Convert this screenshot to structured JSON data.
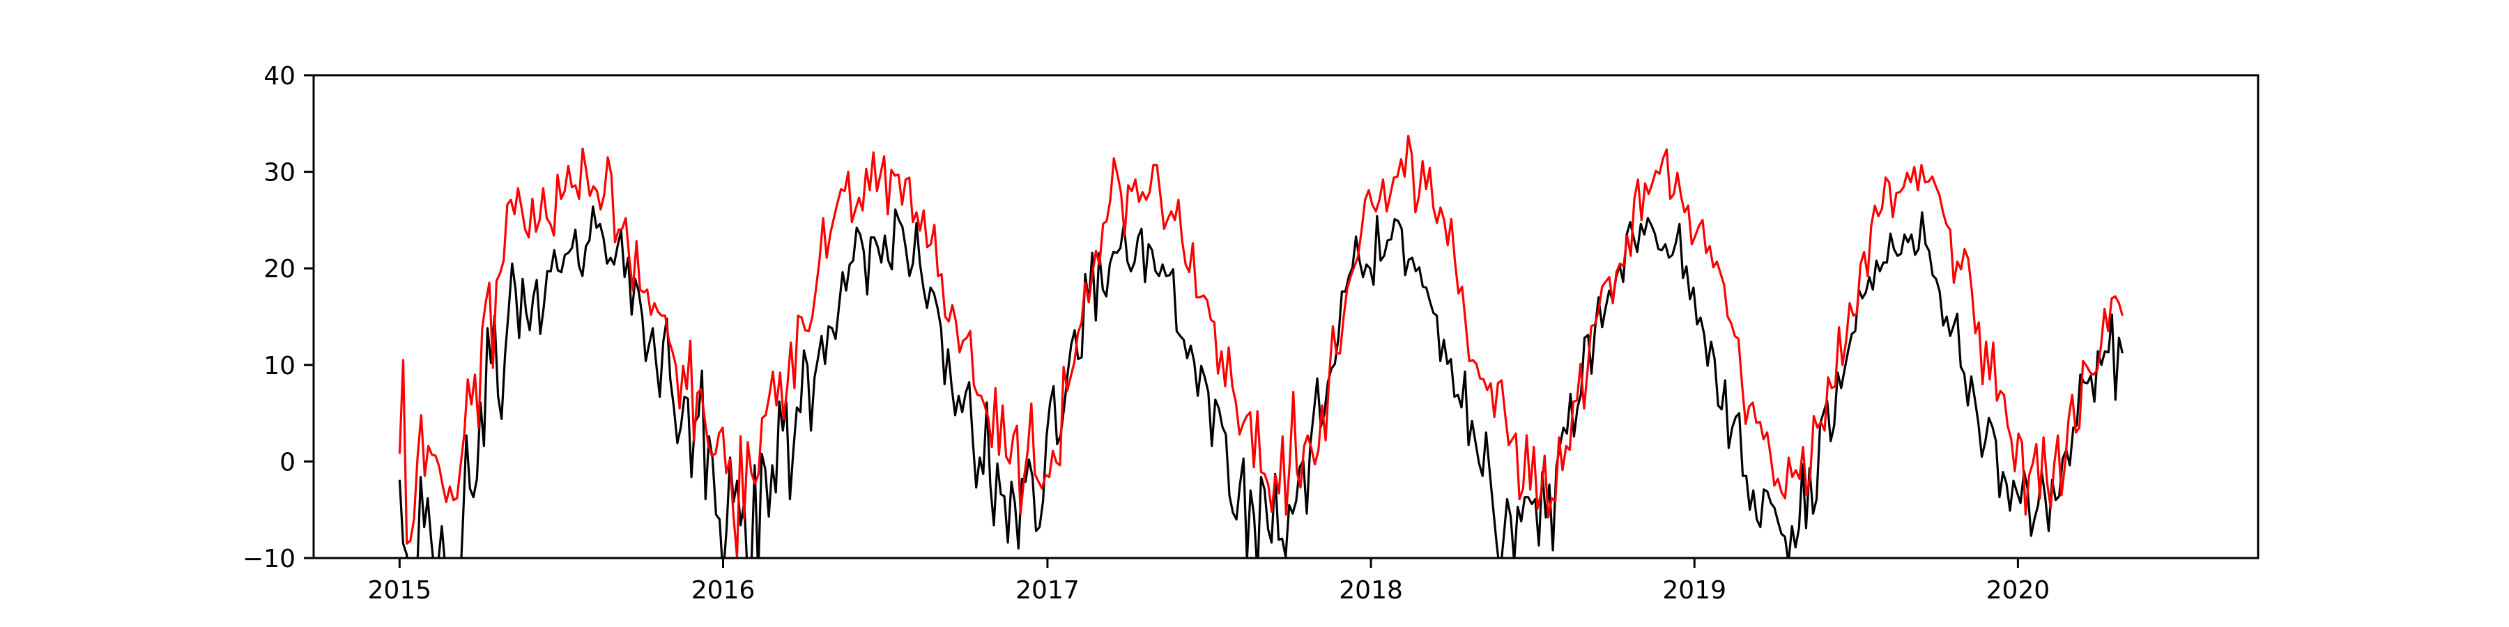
{
  "chart_data": {
    "type": "line",
    "title": "",
    "xlabel": "",
    "ylabel": "",
    "xlim": [
      "2014-09-26",
      "2020-09-28"
    ],
    "ylim": [
      -10,
      40
    ],
    "grid": false,
    "legend": "none",
    "x_ticks": [
      "2015",
      "2016",
      "2017",
      "2018",
      "2019",
      "2020"
    ],
    "y_ticks": [
      "−10",
      "0",
      "10",
      "20",
      "30",
      "40"
    ],
    "x_tick_dates": [
      "2015-01-01",
      "2016-01-01",
      "2017-01-01",
      "2018-01-01",
      "2019-01-01",
      "2020-01-01"
    ],
    "y_tick_values": [
      -10,
      0,
      10,
      20,
      30,
      40
    ],
    "x_start": "2015-01-01",
    "x_end": "2020-04-28",
    "colors": {
      "series_low": "#000000",
      "series_high": "#ff0000"
    },
    "series": [
      {
        "color": "#000000",
        "values": [
          -1.9,
          -8.5,
          -9.6,
          -12.5,
          -10.1,
          -11.4,
          -1.6,
          -6.8,
          -3.8,
          -8.2,
          -11.8,
          -10.5,
          -6.7,
          -11.0,
          -10.3,
          -11.9,
          -10.5,
          -14.6,
          -6.3,
          2.7,
          -2.8,
          -3.7,
          -1.8,
          6.1,
          1.6,
          13.8,
          10.2,
          15.1,
          6.8,
          4.4,
          11.1,
          15.5,
          20.5,
          17.8,
          12.8,
          18.9,
          15.4,
          13.6,
          17.0,
          18.8,
          13.2,
          16.0,
          19.7,
          19.7,
          21.9,
          19.8,
          19.6,
          21.4,
          21.6,
          22.1,
          24.0,
          20.3,
          19.2,
          22.3,
          22.9,
          26.4,
          24.2,
          24.6,
          23.1,
          20.5,
          21.1,
          20.4,
          22.3,
          23.9,
          19.1,
          21.1,
          15.2,
          18.9,
          17.6,
          15.1,
          10.4,
          12.2,
          13.8,
          10.1,
          6.7,
          12.4,
          14.8,
          8.5,
          5.6,
          1.9,
          3.6,
          6.7,
          6.5,
          -1.6,
          4.1,
          4.7,
          9.4,
          -3.9,
          2.6,
          0.3,
          -5.5,
          -6.0,
          -11.9,
          -7.0,
          0.4,
          -4.2,
          -2.0,
          -6.6,
          -4.2,
          -12.1,
          -11.3,
          -0.4,
          -11.8,
          0.8,
          -0.8,
          -5.7,
          -0.4,
          -3.2,
          6.2,
          3.2,
          6.1,
          -3.9,
          1.2,
          5.6,
          5.1,
          11.5,
          9.9,
          3.2,
          8.7,
          10.7,
          13.0,
          10.1,
          14.0,
          13.8,
          12.7,
          16.2,
          19.6,
          17.7,
          20.4,
          20.8,
          24.2,
          23.5,
          21.8,
          17.3,
          23.2,
          23.2,
          22.2,
          20.6,
          23.4,
          20.8,
          19.9,
          26.1,
          25.0,
          24.3,
          22.0,
          19.2,
          20.5,
          24.7,
          20.5,
          17.9,
          15.9,
          18.0,
          17.4,
          15.9,
          13.8,
          8.0,
          11.6,
          7.8,
          4.8,
          6.8,
          5.1,
          7.1,
          8.2,
          2.3,
          -2.7,
          0.4,
          -1.3,
          6.1,
          -2.4,
          -6.6,
          -0.2,
          -3.4,
          -3.6,
          -8.4,
          -2.1,
          -4.3,
          -9.0,
          -1.8,
          -2.1,
          0.2,
          -1.6,
          -7.2,
          -6.8,
          -4.1,
          2.6,
          6.1,
          7.8,
          1.8,
          2.7,
          5.6,
          9.1,
          12.1,
          13.6,
          10.6,
          10.8,
          19.4,
          16.5,
          21.6,
          14.6,
          21.6,
          17.8,
          17.1,
          20.5,
          21.7,
          21.6,
          22.1,
          24.6,
          20.7,
          19.7,
          20.6,
          23.2,
          24.1,
          18.6,
          22.5,
          21.9,
          19.7,
          19.2,
          20.4,
          19.2,
          19.3,
          19.9,
          13.5,
          13.0,
          12.6,
          10.7,
          12.0,
          10.3,
          6.8,
          9.9,
          8.7,
          7.2,
          1.6,
          6.4,
          5.5,
          3.6,
          2.8,
          -3.5,
          -5.3,
          -6.0,
          -2.4,
          0.3,
          -10.2,
          -3.0,
          -5.6,
          -11.6,
          -1.6,
          -2.9,
          -7.0,
          -8.4,
          -1.3,
          -8.1,
          -8.0,
          -9.9,
          -4.5,
          -5.4,
          -4.1,
          -0.6,
          0.1,
          -5.4,
          1.7,
          5.1,
          8.6,
          3.6,
          4.9,
          8.2,
          9.6,
          10.1,
          12.8,
          17.6,
          17.6,
          19.2,
          20.1,
          23.3,
          20.8,
          19.1,
          20.4,
          20.0,
          18.3,
          25.4,
          20.8,
          21.3,
          22.9,
          23.0,
          25.1,
          24.9,
          24.1,
          19.3,
          20.9,
          21.1,
          19.7,
          20.1,
          18.1,
          18.0,
          16.6,
          15.4,
          15.1,
          10.4,
          12.6,
          10.1,
          10.6,
          6.7,
          6.9,
          5.6,
          9.3,
          1.7,
          4.2,
          2.0,
          -0.2,
          -1.5,
          3.0,
          -0.9,
          -4.8,
          -8.5,
          -11.7,
          -7.9,
          -3.9,
          -5.7,
          -10.4,
          -4.7,
          -6.2,
          -3.7,
          -3.7,
          -4.4,
          -3.9,
          -8.7,
          -1.1,
          -5.8,
          -2.4,
          -9.2,
          -0.5,
          1.6,
          3.5,
          2.9,
          7.0,
          2.6,
          5.6,
          7.0,
          12.8,
          13.1,
          9.1,
          13.8,
          17.0,
          13.9,
          15.9,
          17.7,
          16.7,
          19.1,
          20.3,
          18.6,
          23.5,
          24.8,
          23.1,
          21.7,
          24.6,
          23.5,
          25.2,
          24.5,
          23.6,
          22.0,
          21.9,
          22.5,
          21.1,
          21.4,
          22.7,
          24.6,
          19.0,
          20.2,
          16.8,
          18.0,
          14.2,
          14.9,
          13.2,
          9.9,
          12.4,
          10.6,
          5.8,
          5.4,
          8.4,
          1.4,
          3.5,
          4.6,
          5.0,
          -1.5,
          -1.5,
          -5.0,
          -3.0,
          -6.0,
          -6.8,
          -2.9,
          -3.1,
          -4.3,
          -4.8,
          -6.2,
          -7.5,
          -7.8,
          -10.5,
          -6.7,
          -8.9,
          -6.9,
          -0.3,
          -6.9,
          -0.7,
          -5.4,
          -3.9,
          3.9,
          5.1,
          6.3,
          2.1,
          3.7,
          9.2,
          7.6,
          9.6,
          11.5,
          13.2,
          13.5,
          17.8,
          16.9,
          17.5,
          19.1,
          17.8,
          20.8,
          19.7,
          20.6,
          20.6,
          23.6,
          22.0,
          21.3,
          21.5,
          23.5,
          22.7,
          23.5,
          21.4,
          22.0,
          25.8,
          22.5,
          21.8,
          19.3,
          18.9,
          17.6,
          14.1,
          15.0,
          13.0,
          14.1,
          15.3,
          9.8,
          9.1,
          5.8,
          8.8,
          6.5,
          4.0,
          0.5,
          2.1,
          4.5,
          3.6,
          2.1,
          -3.7,
          -1.1,
          -2.3,
          -5.1,
          -2.0,
          -3.2,
          -4.3,
          -1.0,
          -2.8,
          -7.7,
          -5.9,
          -4.5,
          -1.0,
          -3.6,
          -7.2,
          -1.9,
          -4.0,
          -3.6,
          0.3,
          1.2,
          -0.4,
          3.5,
          3.7,
          9.0,
          8.2,
          8.1,
          8.9,
          6.2,
          11.4,
          10.0,
          11.4,
          11.3,
          15.2,
          6.4,
          12.8,
          11.2
        ],
        "style": "line"
      },
      {
        "color": "#ff0000",
        "values": [
          0.8,
          10.5,
          -8.5,
          -8.2,
          -6.0,
          0.4,
          4.8,
          -1.5,
          1.6,
          0.7,
          0.6,
          -0.5,
          -2.5,
          -4.2,
          -2.6,
          -4.0,
          -3.8,
          -0.4,
          2.8,
          8.5,
          5.9,
          9.0,
          3.5,
          13.7,
          16.5,
          18.5,
          9.7,
          18.7,
          19.5,
          20.8,
          26.6,
          27.1,
          25.6,
          28.3,
          26.2,
          24.0,
          23.2,
          27.2,
          23.8,
          25.0,
          28.3,
          25.2,
          24.6,
          23.4,
          29.7,
          27.2,
          28.0,
          30.6,
          28.4,
          28.6,
          27.2,
          32.4,
          30.1,
          27.5,
          28.5,
          28.0,
          26.1,
          27.6,
          31.5,
          29.7,
          22.7,
          24.0,
          24.1,
          25.2,
          21.0,
          17.7,
          22.8,
          17.8,
          17.5,
          17.8,
          15.2,
          16.4,
          15.5,
          15.1,
          15.1,
          12.6,
          11.4,
          9.9,
          5.5,
          9.9,
          7.5,
          12.5,
          2.1,
          7.1,
          7.5,
          4.4,
          1.7,
          0.6,
          0.8,
          2.9,
          3.5,
          -1.2,
          0.2,
          -5.5,
          -9.9,
          2.6,
          -5.9,
          2.0,
          -1.2,
          -2.3,
          -1.3,
          4.5,
          4.8,
          6.8,
          9.3,
          5.8,
          9.2,
          4.4,
          7.7,
          12.3,
          7.6,
          15.1,
          14.9,
          13.6,
          13.5,
          15.0,
          17.9,
          20.9,
          25.2,
          21.1,
          23.6,
          25.2,
          26.8,
          28.2,
          28.0,
          30.0,
          24.8,
          26.1,
          27.3,
          26.0,
          30.3,
          28.1,
          32.0,
          28.0,
          29.8,
          31.6,
          25.6,
          30.2,
          29.6,
          29.7,
          26.6,
          29.2,
          29.4,
          24.8,
          25.8,
          23.9,
          26.0,
          22.2,
          22.5,
          24.5,
          19.2,
          19.4,
          15.0,
          14.5,
          16.2,
          14.5,
          11.3,
          12.5,
          12.8,
          13.5,
          7.9,
          6.9,
          6.8,
          5.8,
          4.5,
          1.5,
          7.6,
          0.7,
          5.8,
          0.5,
          -0.2,
          2.7,
          3.7,
          -5.4,
          -1.6,
          1.1,
          6.0,
          -1.3,
          -2.1,
          -2.8,
          -1.4,
          -1.6,
          1.1,
          -0.1,
          -0.4,
          9.8,
          7.3,
          8.8,
          10.3,
          13.3,
          14.4,
          18.5,
          16.5,
          19.4,
          21.8,
          20.4,
          24.6,
          24.9,
          27.1,
          31.4,
          29.7,
          27.8,
          23.4,
          28.6,
          28.0,
          29.2,
          26.9,
          27.9,
          27.1,
          27.9,
          30.7,
          30.7,
          27.4,
          24.1,
          25.1,
          25.9,
          25.0,
          27.1,
          22.9,
          20.4,
          19.6,
          22.6,
          17.0,
          17.0,
          17.2,
          16.7,
          14.7,
          14.4,
          9.1,
          11.4,
          7.8,
          11.8,
          7.8,
          6.1,
          2.8,
          3.9,
          4.7,
          5.1,
          -0.6,
          5.2,
          -1.1,
          -1.3,
          -2.4,
          -5.2,
          -1.4,
          -3.3,
          2.6,
          -5.5,
          -0.1,
          7.2,
          -1.1,
          -2.7,
          1.6,
          2.7,
          1.4,
          -0.3,
          1.2,
          5.8,
          2.2,
          8.8,
          14.0,
          11.2,
          11.2,
          14.9,
          17.9,
          19.2,
          20.2,
          21.2,
          23.9,
          27.1,
          28.1,
          26.6,
          25.9,
          27.1,
          29.2,
          25.9,
          27.6,
          29.4,
          29.5,
          31.3,
          29.5,
          33.7,
          31.8,
          25.8,
          27.5,
          31.1,
          28.2,
          30.4,
          26.3,
          24.7,
          26.3,
          25.0,
          22.4,
          25.1,
          20.8,
          17.4,
          18.1,
          14.3,
          10.4,
          10.5,
          10.1,
          8.6,
          8.5,
          7.4,
          8.1,
          4.6,
          8.1,
          8.4,
          4.9,
          1.7,
          2.3,
          2.9,
          -3.9,
          -2.8,
          2.7,
          -2.9,
          1.5,
          -4.9,
          -3.3,
          0.6,
          -5.8,
          -3.8,
          -4.1,
          2.5,
          -0.9,
          1.6,
          1.2,
          6.2,
          6.3,
          10.1,
          5.5,
          9.6,
          14.0,
          14.2,
          15.5,
          18.1,
          18.6,
          19.1,
          16.4,
          19.6,
          20.5,
          20.2,
          23.4,
          21.3,
          27.2,
          29.2,
          25.0,
          28.8,
          27.7,
          28.8,
          30.1,
          29.8,
          31.4,
          32.3,
          27.2,
          27.7,
          29.9,
          27.5,
          25.8,
          26.5,
          22.5,
          23.4,
          24.4,
          25.0,
          21.6,
          22.3,
          20.1,
          20.7,
          19.5,
          18.3,
          15.0,
          14.3,
          13.0,
          12.7,
          8.0,
          3.9,
          5.7,
          6.1,
          4.0,
          4.1,
          2.3,
          3.0,
          0.5,
          -2.5,
          -1.8,
          -3.2,
          -3.8,
          0.4,
          -1.6,
          -0.9,
          -1.8,
          1.5,
          -3.5,
          -1.5,
          4.7,
          3.5,
          4.1,
          3.2,
          8.7,
          7.6,
          7.8,
          13.9,
          10.0,
          12.5,
          16.4,
          15.1,
          15.3,
          20.4,
          21.7,
          19.2,
          24.4,
          26.5,
          25.4,
          26.2,
          29.4,
          28.9,
          25.3,
          27.8,
          27.9,
          28.4,
          29.9,
          28.9,
          30.5,
          28.1,
          30.7,
          28.9,
          29.0,
          29.5,
          28.5,
          27.6,
          25.8,
          24.5,
          24.0,
          18.5,
          20.7,
          19.9,
          22.0,
          21.0,
          17.8,
          13.3,
          14.4,
          8.0,
          12.4,
          8.5,
          12.3,
          6.3,
          7.3,
          6.9,
          3.7,
          2.3,
          -1.0,
          2.9,
          2.0,
          -5.5,
          -1.4,
          -0.2,
          1.8,
          -3.8,
          2.5,
          -2.2,
          -4.8,
          -0.2,
          2.7,
          -3.5,
          -0.3,
          4.5,
          6.9,
          3.0,
          3.5,
          10.4,
          9.9,
          9.2,
          9.0,
          9.5,
          11.9,
          15.8,
          13.5,
          16.9,
          17.1,
          16.4,
          15.1
        ],
        "style": "line"
      }
    ]
  }
}
